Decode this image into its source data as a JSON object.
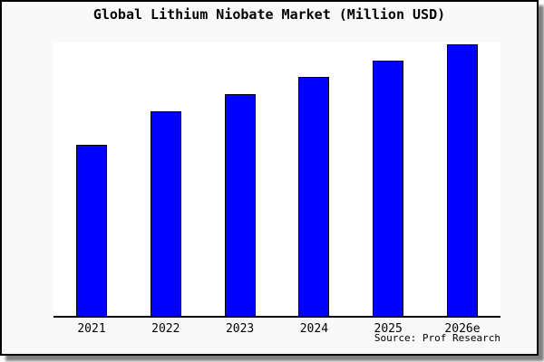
{
  "frame": {
    "background": "#f9f9f9",
    "border_color": "#000000",
    "plot_background": "#ffffff",
    "axis_color": "#000000"
  },
  "chart_data": {
    "type": "bar",
    "title": "Global Lithium Niobate Market (Million USD)",
    "categories": [
      "2021",
      "2022",
      "2023",
      "2024",
      "2025",
      "2026e"
    ],
    "values": [
      189,
      226,
      245,
      264,
      282,
      300
    ],
    "values_note": "no y-axis or data labels shown; values are estimated relative bar heights (pixels), plot height 304",
    "ylim": [
      0,
      304
    ],
    "xlabel": "",
    "ylabel": "",
    "grid": false,
    "legend": false,
    "bar_color": "#0000ff",
    "bar_border_color": "#000000",
    "source_note": "Source: Prof Research"
  }
}
